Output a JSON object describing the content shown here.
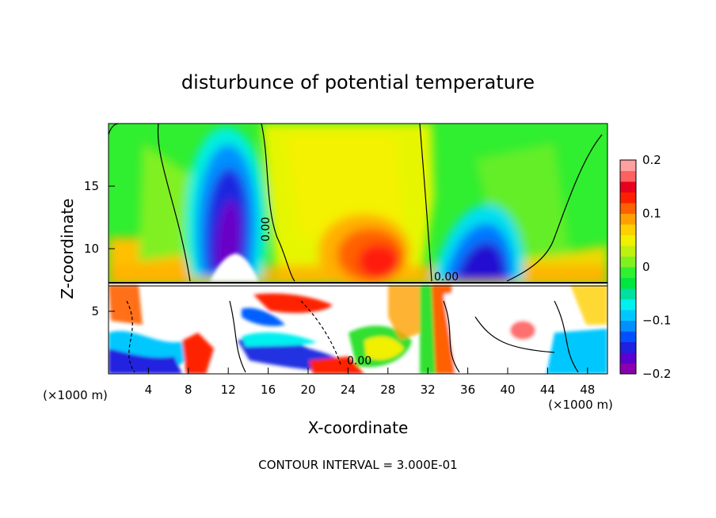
{
  "chart_data": {
    "type": "heatmap",
    "title": "disturbunce of potential temperature",
    "xlabel": "X-coordinate",
    "ylabel": "Z-coordinate",
    "x_unit": "(×1000 m)",
    "y_unit": "(×1000 m)",
    "footer": "CONTOUR INTERVAL = 3.000E-01",
    "xlim": [
      0,
      50
    ],
    "ylim": [
      0,
      20
    ],
    "x_ticks": [
      "4",
      "8",
      "12",
      "16",
      "20",
      "24",
      "28",
      "32",
      "36",
      "40",
      "44",
      "48"
    ],
    "y_ticks": [
      "5",
      "10",
      "15"
    ],
    "colorbar": {
      "range": [
        -0.2,
        0.2
      ],
      "tick_labels": [
        "0.2",
        "0.1",
        "0",
        "−0.1",
        "−0.2"
      ],
      "colors": [
        "#8a00b0",
        "#5a00d0",
        "#2020e0",
        "#0050ff",
        "#0090ff",
        "#00c8ff",
        "#00f0f0",
        "#00e0a0",
        "#00e640",
        "#30f030",
        "#80f020",
        "#c0f010",
        "#f0f000",
        "#ffd000",
        "#ffa000",
        "#ff6000",
        "#ff2000",
        "#e80020",
        "#ff6060",
        "#ffa0a0"
      ]
    },
    "contour_labels": [
      "0.00",
      "0.00",
      "0.00"
    ],
    "features": [
      {
        "x": 11.5,
        "z": 13,
        "value": -0.19
      },
      {
        "x": 27,
        "z": 10.5,
        "value": 0.15
      },
      {
        "x": 36,
        "z": 9.5,
        "value": -0.18
      },
      {
        "x": 40,
        "z": 3.5,
        "value": 0.19
      }
    ]
  }
}
